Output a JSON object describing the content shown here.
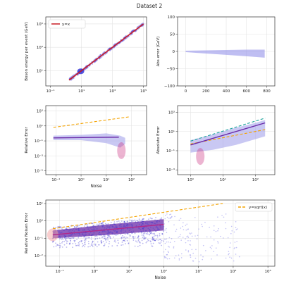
{
  "figure": {
    "title": "Dataset 2"
  },
  "chart_data": [
    {
      "id": "p1",
      "type": "scatter",
      "xscale": "log",
      "yscale": "log",
      "xlim": [
        -1.3,
        5.2
      ],
      "ylim": [
        -0.3,
        5.6
      ],
      "xticks": [
        {
          "v": -1,
          "label": "10⁻¹"
        },
        {
          "v": 1,
          "label": "10¹"
        },
        {
          "v": 3,
          "label": "10³"
        },
        {
          "v": 5,
          "label": "10⁵"
        }
      ],
      "yticks": [
        {
          "v": 1,
          "label": "10¹"
        },
        {
          "v": 3,
          "label": "10³"
        },
        {
          "v": 5,
          "label": "10⁵"
        }
      ],
      "title": "",
      "xlabel": "",
      "ylabel": "Boson energy per event (GeV)",
      "legend": {
        "placement": "top-left",
        "entries": [
          {
            "label": "y=x",
            "color": "#c81d25"
          }
        ]
      },
      "reference_line": {
        "from": [
          0.2,
          0.2
        ],
        "to": [
          5.0,
          5.0
        ],
        "color": "#c81d25"
      },
      "cloud": {
        "from": [
          0.2,
          0.2
        ],
        "to": [
          5.0,
          5.0
        ],
        "color": "#5a4ad8"
      },
      "blob": {
        "x": [
          0.8,
          1.1
        ],
        "y": [
          0.8,
          1.1
        ],
        "color": "#2f2fd6"
      }
    },
    {
      "id": "p2",
      "type": "scatter",
      "xscale": "linear",
      "yscale": "linear",
      "xlim": [
        -80,
        880
      ],
      "ylim": [
        -100,
        100
      ],
      "xticks": [
        {
          "v": 0,
          "label": "0"
        },
        {
          "v": 200,
          "label": "200"
        },
        {
          "v": 400,
          "label": "400"
        },
        {
          "v": 600,
          "label": "600"
        },
        {
          "v": 800,
          "label": "800"
        }
      ],
      "yticks": [
        {
          "v": -100,
          "label": "−100"
        },
        {
          "v": -50,
          "label": "−50"
        },
        {
          "v": 0,
          "label": "0"
        },
        {
          "v": 50,
          "label": "50"
        },
        {
          "v": 100,
          "label": "100"
        }
      ],
      "title": "",
      "xlabel": "",
      "ylabel": "Abs error (GeV)",
      "band": [
        {
          "x": 0,
          "lo": -2,
          "hi": 2
        },
        {
          "x": 200,
          "lo": -6,
          "hi": 3
        },
        {
          "x": 400,
          "lo": -10,
          "hi": 4
        },
        {
          "x": 600,
          "lo": -14,
          "hi": 5
        },
        {
          "x": 780,
          "lo": -18,
          "hi": 5
        }
      ],
      "band_color": "#8a88e8"
    },
    {
      "id": "p3",
      "type": "scatter",
      "xscale": "log",
      "yscale": "log",
      "xlim": [
        -1.4,
        2.6
      ],
      "ylim": [
        -5.5,
        3.7
      ],
      "xticks": [
        {
          "v": -1,
          "label": "10⁻¹"
        },
        {
          "v": 0,
          "label": "10⁰"
        },
        {
          "v": 1,
          "label": "10¹"
        },
        {
          "v": 2,
          "label": "10²"
        }
      ],
      "yticks": [
        {
          "v": -5,
          "label": "10⁻⁵"
        },
        {
          "v": -3,
          "label": "10⁻³"
        },
        {
          "v": -1,
          "label": "10⁻¹"
        },
        {
          "v": 1,
          "label": "10¹"
        },
        {
          "v": 3,
          "label": "10³"
        }
      ],
      "title": "",
      "xlabel": "Noise",
      "ylabel": "Relative Error",
      "dashed_line": {
        "x": [
          -1.1,
          1.9
        ],
        "y": [
          0.8,
          2.2
        ],
        "color": "#f4a300"
      },
      "band": [
        {
          "x": -1.1,
          "lo": -0.9,
          "hi": -0.3
        },
        {
          "x": 0.0,
          "lo": -0.9,
          "hi": -0.2
        },
        {
          "x": 1.0,
          "lo": -1.3,
          "hi": 0.0
        },
        {
          "x": 1.55,
          "lo": -1.9,
          "hi": -0.3
        },
        {
          "x": 1.75,
          "lo": -1.4,
          "hi": -0.6
        }
      ],
      "band_color": "#9c9aea",
      "median_line": {
        "x": [
          -1.1,
          1.5
        ],
        "y": [
          -0.6,
          -0.5
        ],
        "color": "#6a2aa8"
      },
      "tail": {
        "x": 1.6,
        "y": -2.3,
        "color": "#c8277a"
      }
    },
    {
      "id": "p4",
      "type": "scatter",
      "xscale": "log",
      "yscale": "log",
      "xlim": [
        -0.4,
        2.6
      ],
      "ylim": [
        -3.5,
        3.7
      ],
      "xticks": [
        {
          "v": 0,
          "label": "10⁰"
        },
        {
          "v": 1,
          "label": "10¹"
        },
        {
          "v": 2,
          "label": "10²"
        }
      ],
      "yticks": [
        {
          "v": -3,
          "label": "10⁻³"
        },
        {
          "v": -1,
          "label": "10⁻¹"
        },
        {
          "v": 1,
          "label": "10¹"
        },
        {
          "v": 3,
          "label": "10³"
        }
      ],
      "title": "",
      "xlabel": "",
      "ylabel": "Absolute Error",
      "dashed_lines": [
        {
          "x": [
            0.0,
            2.3
          ],
          "y": [
            0.0,
            2.4
          ],
          "color": "#1aa39a"
        },
        {
          "x": [
            0.0,
            2.3
          ],
          "y": [
            -0.3,
            1.2
          ],
          "color": "#f4a300"
        }
      ],
      "band": [
        {
          "x": 0.0,
          "lo": -1.2,
          "hi": 0.1
        },
        {
          "x": 0.7,
          "lo": -0.9,
          "hi": 0.7
        },
        {
          "x": 1.4,
          "lo": -0.4,
          "hi": 1.4
        },
        {
          "x": 2.0,
          "lo": 0.2,
          "hi": 1.9
        },
        {
          "x": 2.3,
          "lo": 0.5,
          "hi": 2.2
        }
      ],
      "band_color": "#9c9aea",
      "median_line": {
        "x": [
          0.0,
          2.3
        ],
        "y": [
          -0.4,
          1.9
        ],
        "color": "#6a2aa8"
      },
      "tail": {
        "x": 0.3,
        "y": -1.6,
        "color": "#c8277a"
      }
    },
    {
      "id": "p5",
      "type": "scatter",
      "xscale": "log",
      "yscale": "log",
      "xlim": [
        -1.4,
        5.2
      ],
      "ylim": [
        -2.6,
        1.2
      ],
      "xticks": [
        {
          "v": -1,
          "label": "10⁻¹"
        },
        {
          "v": 0,
          "label": "10⁰"
        },
        {
          "v": 1,
          "label": "10¹"
        },
        {
          "v": 2,
          "label": "10²"
        },
        {
          "v": 3,
          "label": "10³"
        },
        {
          "v": 4,
          "label": "10⁴"
        },
        {
          "v": 5,
          "label": "10⁵"
        }
      ],
      "yticks": [
        {
          "v": -2,
          "label": "10⁻²"
        },
        {
          "v": -1,
          "label": "10⁻¹"
        },
        {
          "v": 0,
          "label": "10⁰"
        },
        {
          "v": 1,
          "label": "10¹"
        }
      ],
      "title": "",
      "xlabel": "Noise",
      "ylabel": "Relative Noisen Error",
      "legend": {
        "placement": "top-right",
        "entries": [
          {
            "label": "y=sqrt(x)",
            "color": "#f4a300"
          }
        ]
      },
      "dashed_line": {
        "x": [
          -1.2,
          3.7
        ],
        "y": [
          -0.45,
          1.0
        ],
        "color": "#f4a300"
      },
      "scatter_region": {
        "x": [
          -1.2,
          2.0
        ],
        "y_lo": [
          -1.55,
          -1.45
        ],
        "y_hi": [
          -0.35,
          0.25
        ],
        "color": "#3a30d0"
      },
      "band": [
        {
          "x": -1.2,
          "lo": -1.0,
          "hi": -0.55
        },
        {
          "x": 0.4,
          "lo": -0.8,
          "hi": -0.2
        },
        {
          "x": 2.0,
          "lo": -0.55,
          "hi": 0.1
        }
      ],
      "band_color": "#6a2aa8",
      "median_line": {
        "x": [
          -1.2,
          2.0
        ],
        "y": [
          -0.8,
          -0.2
        ],
        "color": "#b02a8c"
      },
      "fringe": {
        "x": [
          2.0,
          4.2
        ],
        "y": [
          -2.4,
          0.4
        ],
        "color": "#7b78e8"
      }
    }
  ]
}
